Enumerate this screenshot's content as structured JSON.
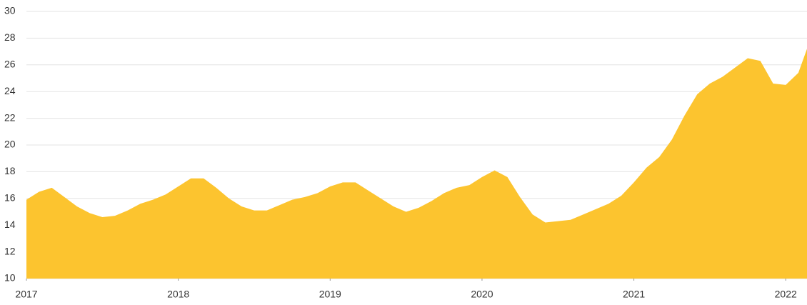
{
  "chart_data": {
    "type": "area",
    "color": "#fcc42f",
    "grid": true,
    "x": [
      2017,
      2017.083,
      2017.167,
      2017.25,
      2017.333,
      2017.417,
      2017.5,
      2017.583,
      2017.667,
      2017.75,
      2017.833,
      2017.917,
      2018,
      2018.083,
      2018.167,
      2018.25,
      2018.333,
      2018.417,
      2018.5,
      2018.583,
      2018.667,
      2018.75,
      2018.833,
      2018.917,
      2019,
      2019.083,
      2019.167,
      2019.25,
      2019.333,
      2019.417,
      2019.5,
      2019.583,
      2019.667,
      2019.75,
      2019.833,
      2019.917,
      2020,
      2020.083,
      2020.167,
      2020.25,
      2020.333,
      2020.417,
      2020.5,
      2020.583,
      2020.667,
      2020.75,
      2020.833,
      2020.917,
      2021,
      2021.083,
      2021.167,
      2021.25,
      2021.333,
      2021.417,
      2021.5,
      2021.583,
      2021.667,
      2021.75,
      2021.833,
      2021.917,
      2022,
      2022.083,
      2022.14
    ],
    "values": [
      15.9,
      16.5,
      16.8,
      16.1,
      15.4,
      14.9,
      14.6,
      14.7,
      15.1,
      15.6,
      15.9,
      16.3,
      16.9,
      17.5,
      17.5,
      16.8,
      16.0,
      15.4,
      15.1,
      15.1,
      15.5,
      15.9,
      16.1,
      16.4,
      16.9,
      17.2,
      17.2,
      16.6,
      16.0,
      15.4,
      15.0,
      15.3,
      15.8,
      16.4,
      16.8,
      17.0,
      17.6,
      18.1,
      17.6,
      16.1,
      14.8,
      14.2,
      14.3,
      14.4,
      14.8,
      15.2,
      15.6,
      16.2,
      17.2,
      18.3,
      19.1,
      20.4,
      22.2,
      23.8,
      24.6,
      25.1,
      25.8,
      26.5,
      26.3,
      24.6,
      24.5,
      25.4,
      27.2
    ],
    "xlim": [
      2017,
      2022.14
    ],
    "xticks": [
      2017,
      2018,
      2019,
      2020,
      2021,
      2022
    ],
    "ylim": [
      10,
      30
    ],
    "yticks": [
      10,
      12,
      14,
      16,
      18,
      20,
      22,
      24,
      26,
      28,
      30
    ]
  }
}
